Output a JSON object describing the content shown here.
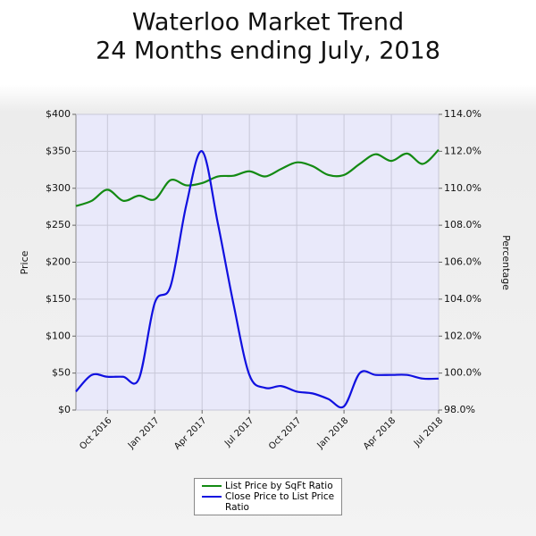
{
  "chart_data": {
    "type": "line",
    "title": "Waterloo Market Trend",
    "subtitle": "24 Months ending July, 2018",
    "y_label": "Price",
    "y2_label": "Percentage",
    "categories": [
      null,
      null,
      "Oct 2016",
      null,
      null,
      "Jan 2017",
      null,
      null,
      "Apr 2017",
      null,
      null,
      "Jul 2017",
      null,
      null,
      "Oct 2017",
      null,
      null,
      "Jan 2018",
      null,
      null,
      "Apr 2018",
      null,
      null,
      "Jul 2018"
    ],
    "series": [
      {
        "name": "List Price by SqFt Ratio",
        "color": "#138a13",
        "values": [
          276,
          283,
          298,
          283,
          290,
          285,
          311,
          304,
          307,
          316,
          317,
          323,
          316,
          326,
          335,
          330,
          318,
          318,
          333,
          346,
          337,
          347,
          333,
          352
        ]
      },
      {
        "name": "Close Price to List Price Ratio",
        "color": "#1010e0",
        "axis": "y2",
        "values": [
          99.0,
          99.9,
          99.8,
          99.8,
          99.7,
          103.8,
          104.7,
          109.1,
          112.0,
          108.1,
          103.7,
          99.9,
          99.2,
          99.3,
          99.0,
          98.9,
          98.6,
          98.2,
          100.0,
          99.9,
          99.9,
          99.9,
          99.7,
          99.7
        ]
      }
    ],
    "ylim": [
      0,
      400
    ],
    "yticks": [
      {
        "value": 0,
        "label": "$0"
      },
      {
        "value": 50,
        "label": "$50"
      },
      {
        "value": 100,
        "label": "$100"
      },
      {
        "value": 150,
        "label": "$150"
      },
      {
        "value": 200,
        "label": "$200"
      },
      {
        "value": 250,
        "label": "$250"
      },
      {
        "value": 300,
        "label": "$300"
      },
      {
        "value": 350,
        "label": "$350"
      },
      {
        "value": 400,
        "label": "$400"
      }
    ],
    "y2lim": [
      98,
      114
    ],
    "y2ticks": [
      {
        "value": 98,
        "label": "98.0%"
      },
      {
        "value": 100,
        "label": "100.0%"
      },
      {
        "value": 102,
        "label": "102.0%"
      },
      {
        "value": 104,
        "label": "104.0%"
      },
      {
        "value": 106,
        "label": "106.0%"
      },
      {
        "value": 108,
        "label": "108.0%"
      },
      {
        "value": 110,
        "label": "110.0%"
      },
      {
        "value": 112,
        "label": "112.0%"
      },
      {
        "value": 114,
        "label": "114.0%"
      }
    ],
    "grid": true,
    "legend": "bottom"
  }
}
